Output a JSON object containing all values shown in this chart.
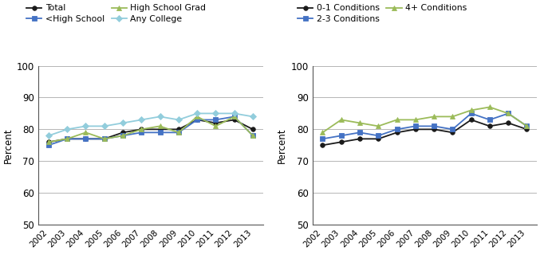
{
  "years": [
    2002,
    2003,
    2004,
    2005,
    2006,
    2007,
    2008,
    2009,
    2010,
    2011,
    2012,
    2013
  ],
  "left_panel": {
    "Total": [
      76,
      77,
      77,
      77,
      79,
      80,
      80,
      80,
      83,
      82,
      83,
      80
    ],
    "LessHighSchool": [
      75,
      77,
      77,
      77,
      78,
      79,
      79,
      79,
      83,
      83,
      84,
      78
    ],
    "HighSchoolGrad": [
      76,
      77,
      79,
      77,
      78,
      80,
      81,
      79,
      84,
      81,
      84,
      78
    ],
    "AnyCollege": [
      78,
      80,
      81,
      81,
      82,
      83,
      84,
      83,
      85,
      85,
      85,
      84
    ]
  },
  "right_panel": {
    "ZeroOne": [
      75,
      76,
      77,
      77,
      79,
      80,
      80,
      79,
      83,
      81,
      82,
      80
    ],
    "TwoThree": [
      77,
      78,
      79,
      78,
      80,
      81,
      81,
      80,
      85,
      83,
      85,
      81
    ],
    "FourPlus": [
      79,
      83,
      82,
      81,
      83,
      83,
      84,
      84,
      86,
      87,
      85,
      81
    ]
  },
  "colors": {
    "Total": "#1a1a1a",
    "LessHighSchool": "#4472C4",
    "HighSchoolGrad": "#9BBB59",
    "AnyCollege": "#92CDDC",
    "ZeroOne": "#1a1a1a",
    "TwoThree": "#4472C4",
    "FourPlus": "#9BBB59"
  },
  "markers": {
    "Total": "o",
    "LessHighSchool": "s",
    "HighSchoolGrad": "^",
    "AnyCollege": "D",
    "ZeroOne": "o",
    "TwoThree": "s",
    "FourPlus": "^"
  },
  "left_legend_row1": [
    {
      "label": "Total",
      "key": "Total"
    },
    {
      "label": "<High School",
      "key": "LessHighSchool"
    }
  ],
  "left_legend_row2": [
    {
      "label": "High School Grad",
      "key": "HighSchoolGrad"
    },
    {
      "label": "Any College",
      "key": "AnyCollege"
    }
  ],
  "right_legend_row1": [
    {
      "label": "0-1 Conditions",
      "key": "ZeroOne"
    },
    {
      "label": "2-3 Conditions",
      "key": "TwoThree"
    }
  ],
  "right_legend_row2": [
    {
      "label": "4+ Conditions",
      "key": "FourPlus"
    }
  ],
  "ylabel": "Percent",
  "ylim": [
    50,
    100
  ],
  "yticks": [
    50,
    60,
    70,
    80,
    90,
    100
  ],
  "grid_color": "#aaaaaa",
  "line_width": 1.3,
  "marker_size": 4
}
